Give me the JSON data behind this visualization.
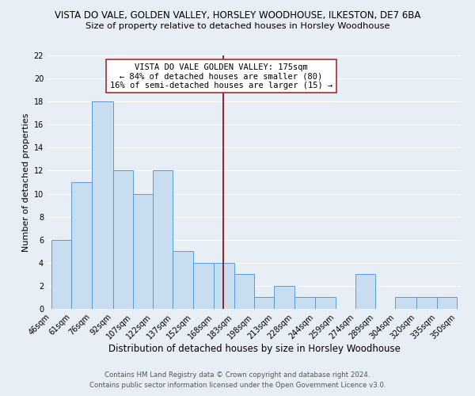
{
  "title": "VISTA DO VALE, GOLDEN VALLEY, HORSLEY WOODHOUSE, ILKESTON, DE7 6BA",
  "subtitle": "Size of property relative to detached houses in Horsley Woodhouse",
  "xlabel": "Distribution of detached houses by size in Horsley Woodhouse",
  "ylabel": "Number of detached properties",
  "bins": [
    46,
    61,
    76,
    92,
    107,
    122,
    137,
    152,
    168,
    183,
    198,
    213,
    228,
    244,
    259,
    274,
    289,
    304,
    320,
    335,
    350
  ],
  "counts": [
    6,
    11,
    18,
    12,
    10,
    12,
    5,
    4,
    4,
    3,
    1,
    2,
    1,
    1,
    0,
    3,
    0,
    1,
    1,
    1
  ],
  "bar_color": "#c8ddef",
  "bar_edge_color": "#5b9bd5",
  "bar_linewidth": 0.7,
  "vline_x": 175,
  "vline_color": "#8b0000",
  "vline_linewidth": 1.2,
  "ylim": [
    0,
    22
  ],
  "yticks": [
    0,
    2,
    4,
    6,
    8,
    10,
    12,
    14,
    16,
    18,
    20,
    22
  ],
  "tick_labels": [
    "46sqm",
    "61sqm",
    "76sqm",
    "92sqm",
    "107sqm",
    "122sqm",
    "137sqm",
    "152sqm",
    "168sqm",
    "183sqm",
    "198sqm",
    "213sqm",
    "228sqm",
    "244sqm",
    "259sqm",
    "274sqm",
    "289sqm",
    "304sqm",
    "320sqm",
    "335sqm",
    "350sqm"
  ],
  "annotation_title": "VISTA DO VALE GOLDEN VALLEY: 175sqm",
  "annotation_line1": "← 84% of detached houses are smaller (80)",
  "annotation_line2": "16% of semi-detached houses are larger (15) →",
  "footer1": "Contains HM Land Registry data © Crown copyright and database right 2024.",
  "footer2": "Contains public sector information licensed under the Open Government Licence v3.0.",
  "bg_color": "#e8eef5",
  "plot_bg_color": "#e8eef5",
  "grid_color": "#ffffff",
  "title_fontsize": 8.5,
  "subtitle_fontsize": 8.2,
  "xlabel_fontsize": 8.5,
  "ylabel_fontsize": 8.0,
  "tick_fontsize": 7.0,
  "ann_fontsize": 7.5,
  "footer_fontsize": 6.2,
  "ann_box_edge_color": "#a03030"
}
